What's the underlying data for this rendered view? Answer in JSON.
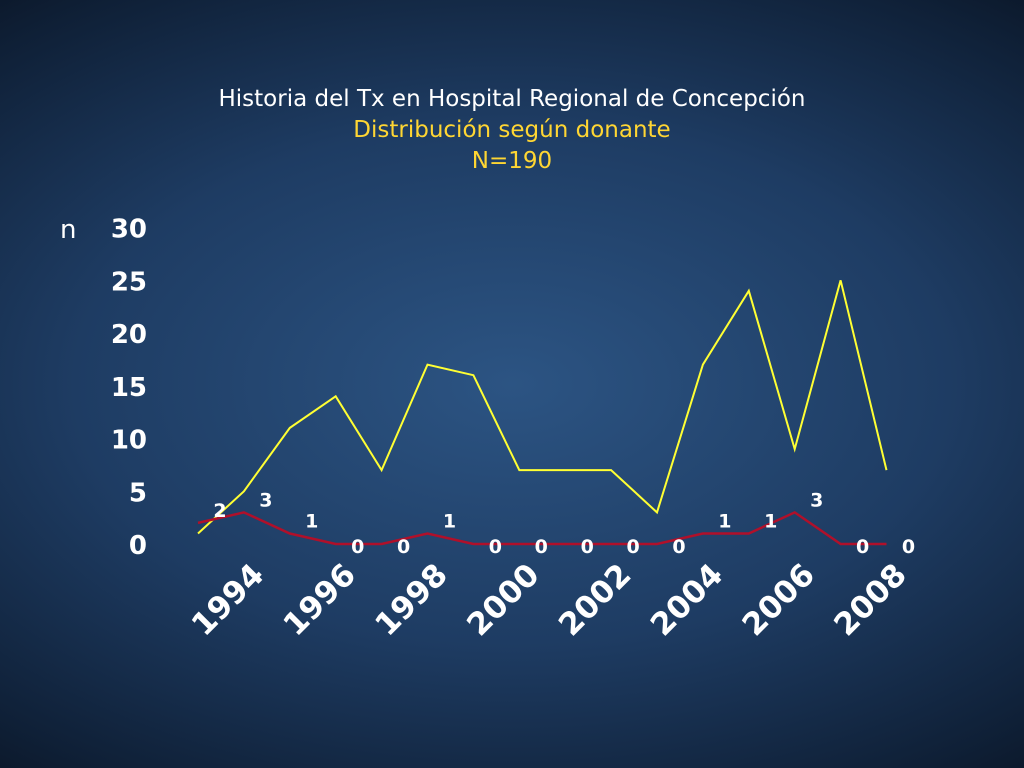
{
  "slide": {
    "title": "Historia del Tx en Hospital Regional de Concepción",
    "subtitle": "Distribución según donante",
    "total": "N=190",
    "colors": {
      "title": "#ffffff",
      "subtitle": "#ffd633"
    }
  },
  "chart_data": {
    "type": "line",
    "title": "Historia del Tx en Hospital Regional de Concepción",
    "subtitle": "Distribución según donante",
    "xlabel": "",
    "ylabel": "n",
    "ylim": [
      0,
      30
    ],
    "yticks": [
      "0",
      "5",
      "10",
      "15",
      "20",
      "25",
      "30"
    ],
    "xlim": [
      1994,
      2009.5
    ],
    "xticks": [
      "1994",
      "1996",
      "1998",
      "2000",
      "2002",
      "2004",
      "2006",
      "2008"
    ],
    "grid": false,
    "legend": "none",
    "x": [
      1994,
      1995,
      1996,
      1997,
      1998,
      1999,
      2000,
      2001,
      2002,
      2003,
      2004,
      2005,
      2006,
      2007,
      2008,
      2009
    ],
    "series": [
      {
        "color": "#ffff33",
        "values": [
          1,
          5,
          11,
          14,
          7,
          17,
          16,
          7,
          7,
          7,
          3,
          17,
          24,
          9,
          25,
          7
        ],
        "show_labels": false
      },
      {
        "color": "#b0102a",
        "values": [
          2,
          3,
          1,
          0,
          0,
          1,
          0,
          0,
          0,
          0,
          0,
          1,
          1,
          3,
          0,
          0
        ],
        "show_labels": true
      }
    ]
  }
}
